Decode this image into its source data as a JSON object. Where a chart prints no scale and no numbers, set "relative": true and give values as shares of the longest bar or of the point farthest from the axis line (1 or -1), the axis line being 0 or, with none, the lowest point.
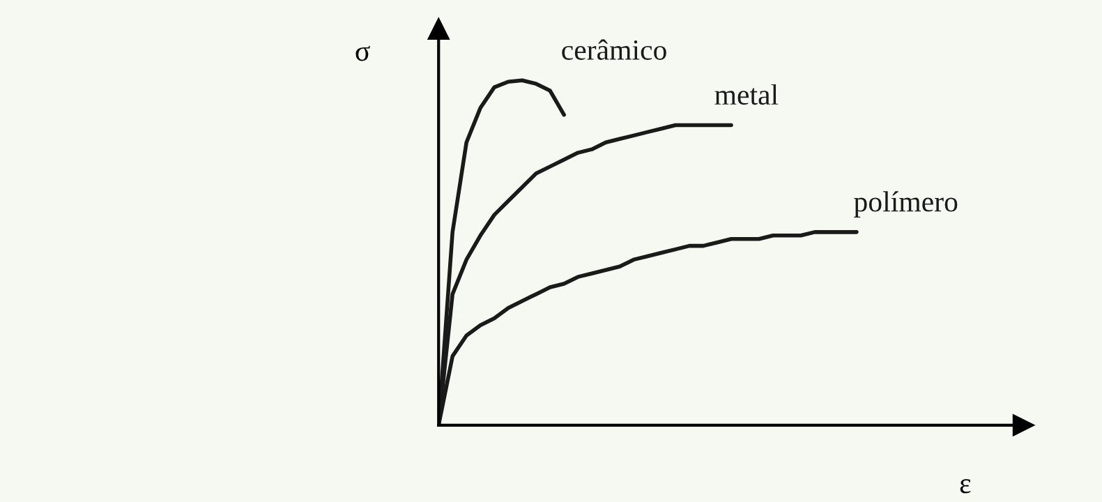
{
  "chart_data": {
    "type": "line",
    "relative": true,
    "xlabel": "ε",
    "ylabel": "σ",
    "grid": false,
    "legend": false,
    "marker": "none",
    "line_style": "solid",
    "categories": [
      null,
      null,
      null,
      null,
      null,
      null,
      null,
      null,
      null,
      null,
      null,
      null,
      null,
      null,
      null,
      null,
      null,
      null,
      null,
      null,
      null,
      null,
      null,
      null,
      null,
      null,
      null,
      null,
      null,
      null,
      null,
      null,
      null,
      null,
      null,
      null,
      null,
      null,
      null,
      null,
      null,
      null,
      null
    ],
    "series": [
      {
        "name": "cerâmico",
        "color": "#1a1a1a",
        "values": [
          0,
          0.56,
          0.82,
          0.92,
          0.98,
          0.996,
          1,
          0.99,
          0.97,
          0.9,
          null,
          null,
          null,
          null,
          null,
          null,
          null,
          null,
          null,
          null,
          null,
          null,
          null,
          null,
          null,
          null,
          null,
          null,
          null,
          null,
          null,
          null,
          null,
          null,
          null,
          null,
          null,
          null,
          null,
          null,
          null,
          null,
          null
        ]
      },
      {
        "name": "metal",
        "color": "#1a1a1a",
        "values": [
          0,
          0.38,
          0.48,
          0.55,
          0.61,
          0.65,
          0.69,
          0.73,
          0.75,
          0.77,
          0.79,
          0.8,
          0.82,
          0.83,
          0.84,
          0.85,
          0.86,
          0.87,
          0.87,
          0.87,
          0.87,
          0.87,
          null,
          null,
          null,
          null,
          null,
          null,
          null,
          null,
          null,
          null,
          null,
          null,
          null,
          null,
          null,
          null,
          null,
          null,
          null,
          null,
          null
        ]
      },
      {
        "name": "polímero",
        "color": "#1a1a1a",
        "values": [
          0,
          0.2,
          0.26,
          0.29,
          0.31,
          0.34,
          0.36,
          0.38,
          0.4,
          0.41,
          0.43,
          0.44,
          0.45,
          0.46,
          0.48,
          0.49,
          0.5,
          0.51,
          0.52,
          0.52,
          0.53,
          0.54,
          0.54,
          0.54,
          0.55,
          0.55,
          0.55,
          0.56,
          0.56,
          0.56,
          0.56,
          null,
          null,
          null,
          null,
          null,
          null,
          null,
          null,
          null,
          null,
          null,
          null
        ]
      }
    ]
  }
}
